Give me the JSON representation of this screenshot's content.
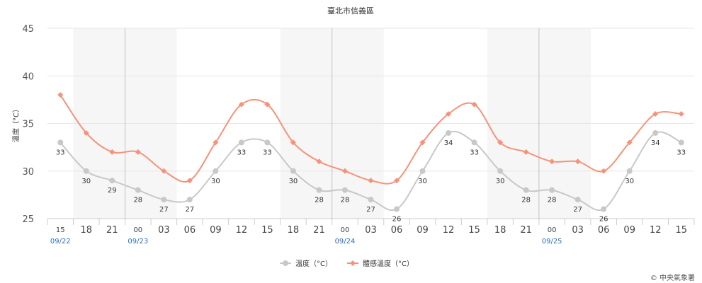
{
  "chart_data": {
    "type": "line",
    "title": "臺北市信義區",
    "ylabel": "溫度（°C）",
    "ylim": [
      25,
      45
    ],
    "yticks": [
      25,
      30,
      35,
      40,
      45
    ],
    "categories": [
      "15",
      "18",
      "21",
      "00",
      "03",
      "06",
      "09",
      "12",
      "15",
      "18",
      "21",
      "00",
      "03",
      "06",
      "09",
      "12",
      "15",
      "18",
      "21",
      "00",
      "03",
      "06",
      "09",
      "12",
      "15"
    ],
    "date_labels": [
      {
        "index": 0,
        "text": "09/22"
      },
      {
        "index": 3,
        "text": "09/23"
      },
      {
        "index": 11,
        "text": "09/24"
      },
      {
        "index": 19,
        "text": "09/25"
      }
    ],
    "night_bands": [
      [
        1,
        5
      ],
      [
        9,
        13
      ],
      [
        17,
        21
      ]
    ],
    "day_dividers": [
      3,
      11,
      19
    ],
    "series": [
      {
        "name": "溫度（°C）",
        "color": "#c8c8c8",
        "marker": "circle",
        "show_labels": true,
        "values": [
          33,
          30,
          29,
          28,
          27,
          27,
          30,
          33,
          33,
          30,
          28,
          28,
          27,
          26,
          30,
          34,
          33,
          30,
          28,
          28,
          27,
          26,
          30,
          34,
          33
        ]
      },
      {
        "name": "體感溫度（°C）",
        "color": "#f5937a",
        "marker": "diamond",
        "show_labels": false,
        "values": [
          38,
          34,
          32,
          32,
          30,
          29,
          33,
          37,
          37,
          33,
          31,
          30,
          29,
          29,
          33,
          36,
          37,
          33,
          32,
          31,
          31,
          30,
          33,
          36,
          36
        ]
      }
    ],
    "grid": true,
    "legend_position": "bottom-center"
  },
  "credit": "© 中央氣象署"
}
